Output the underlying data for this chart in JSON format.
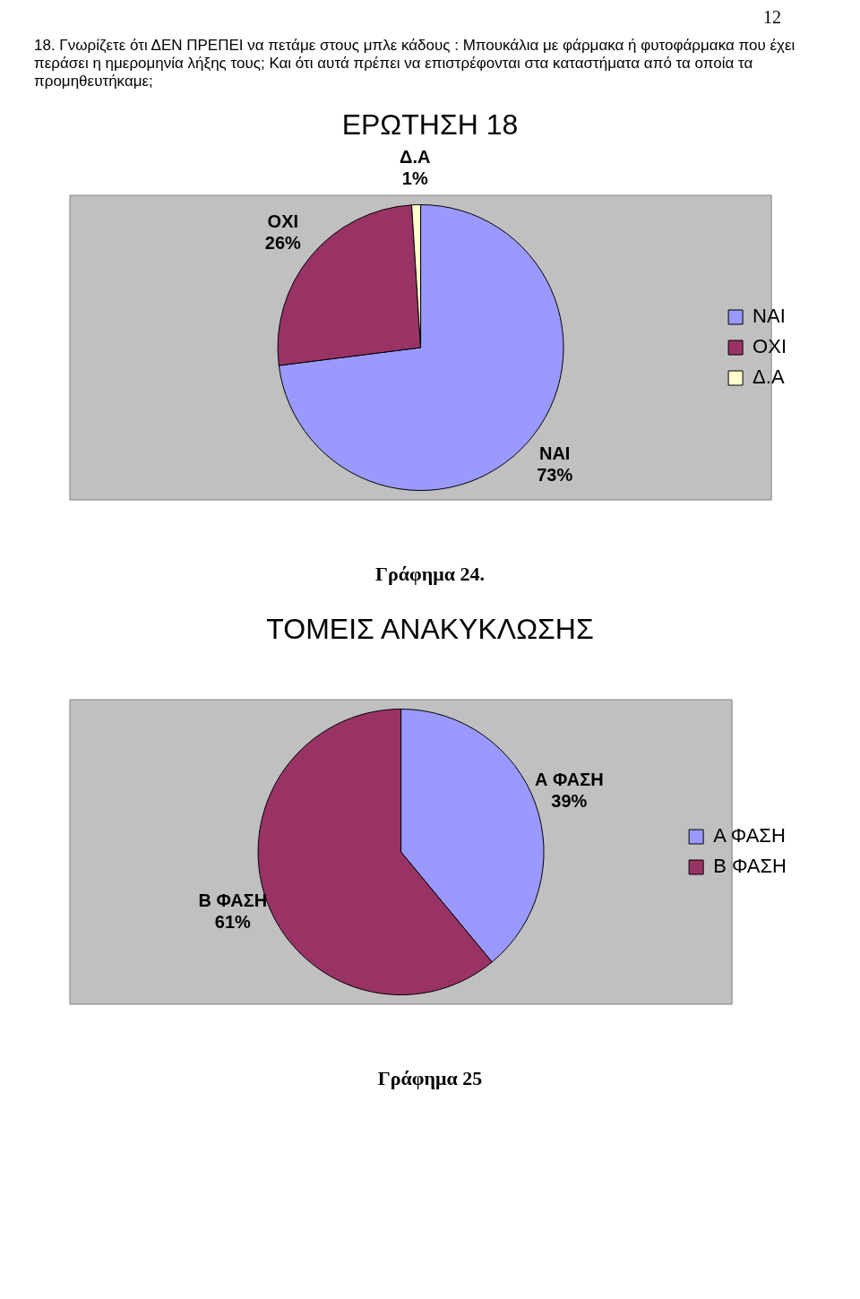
{
  "chart_data": [
    {
      "type": "pie",
      "title": "ΕΡΩΤΗΣΗ 18",
      "categories": [
        "ΝΑΙ",
        "ΟΧΙ",
        "Δ.Α"
      ],
      "values": [
        73,
        26,
        1
      ],
      "colors": [
        "#9999ff",
        "#993366",
        "#ffffcc"
      ],
      "value_labels": [
        "73%",
        "26%",
        "1%"
      ],
      "legend": "right",
      "annotations": [
        "12",
        "18. Γνωρίζετε ότι ΔΕΝ ΠΡΕΠΕΙ να πετάμε στους μπλε κάδους : Μπουκάλια με φάρμακα ή φυτοφάρμακα που έχει περάσει η ημερομηνία λήξης τους; Και ότι αυτά πρέπει να επιστρέφονται στα καταστήματα από τα οποία τα προμηθευτήκαμε;",
        "Γράφημα 24."
      ]
    },
    {
      "type": "pie",
      "title": "ΤΟΜΕΙΣ ΑΝΑΚΥΚΛΩΣΗΣ",
      "categories": [
        "Α ΦΑΣΗ",
        "Β ΦΑΣΗ"
      ],
      "values": [
        39,
        61
      ],
      "colors": [
        "#9999ff",
        "#993366"
      ],
      "value_labels": [
        "39%",
        "61%"
      ],
      "legend": "right",
      "annotations": [
        "Γράφημα 25"
      ]
    }
  ]
}
